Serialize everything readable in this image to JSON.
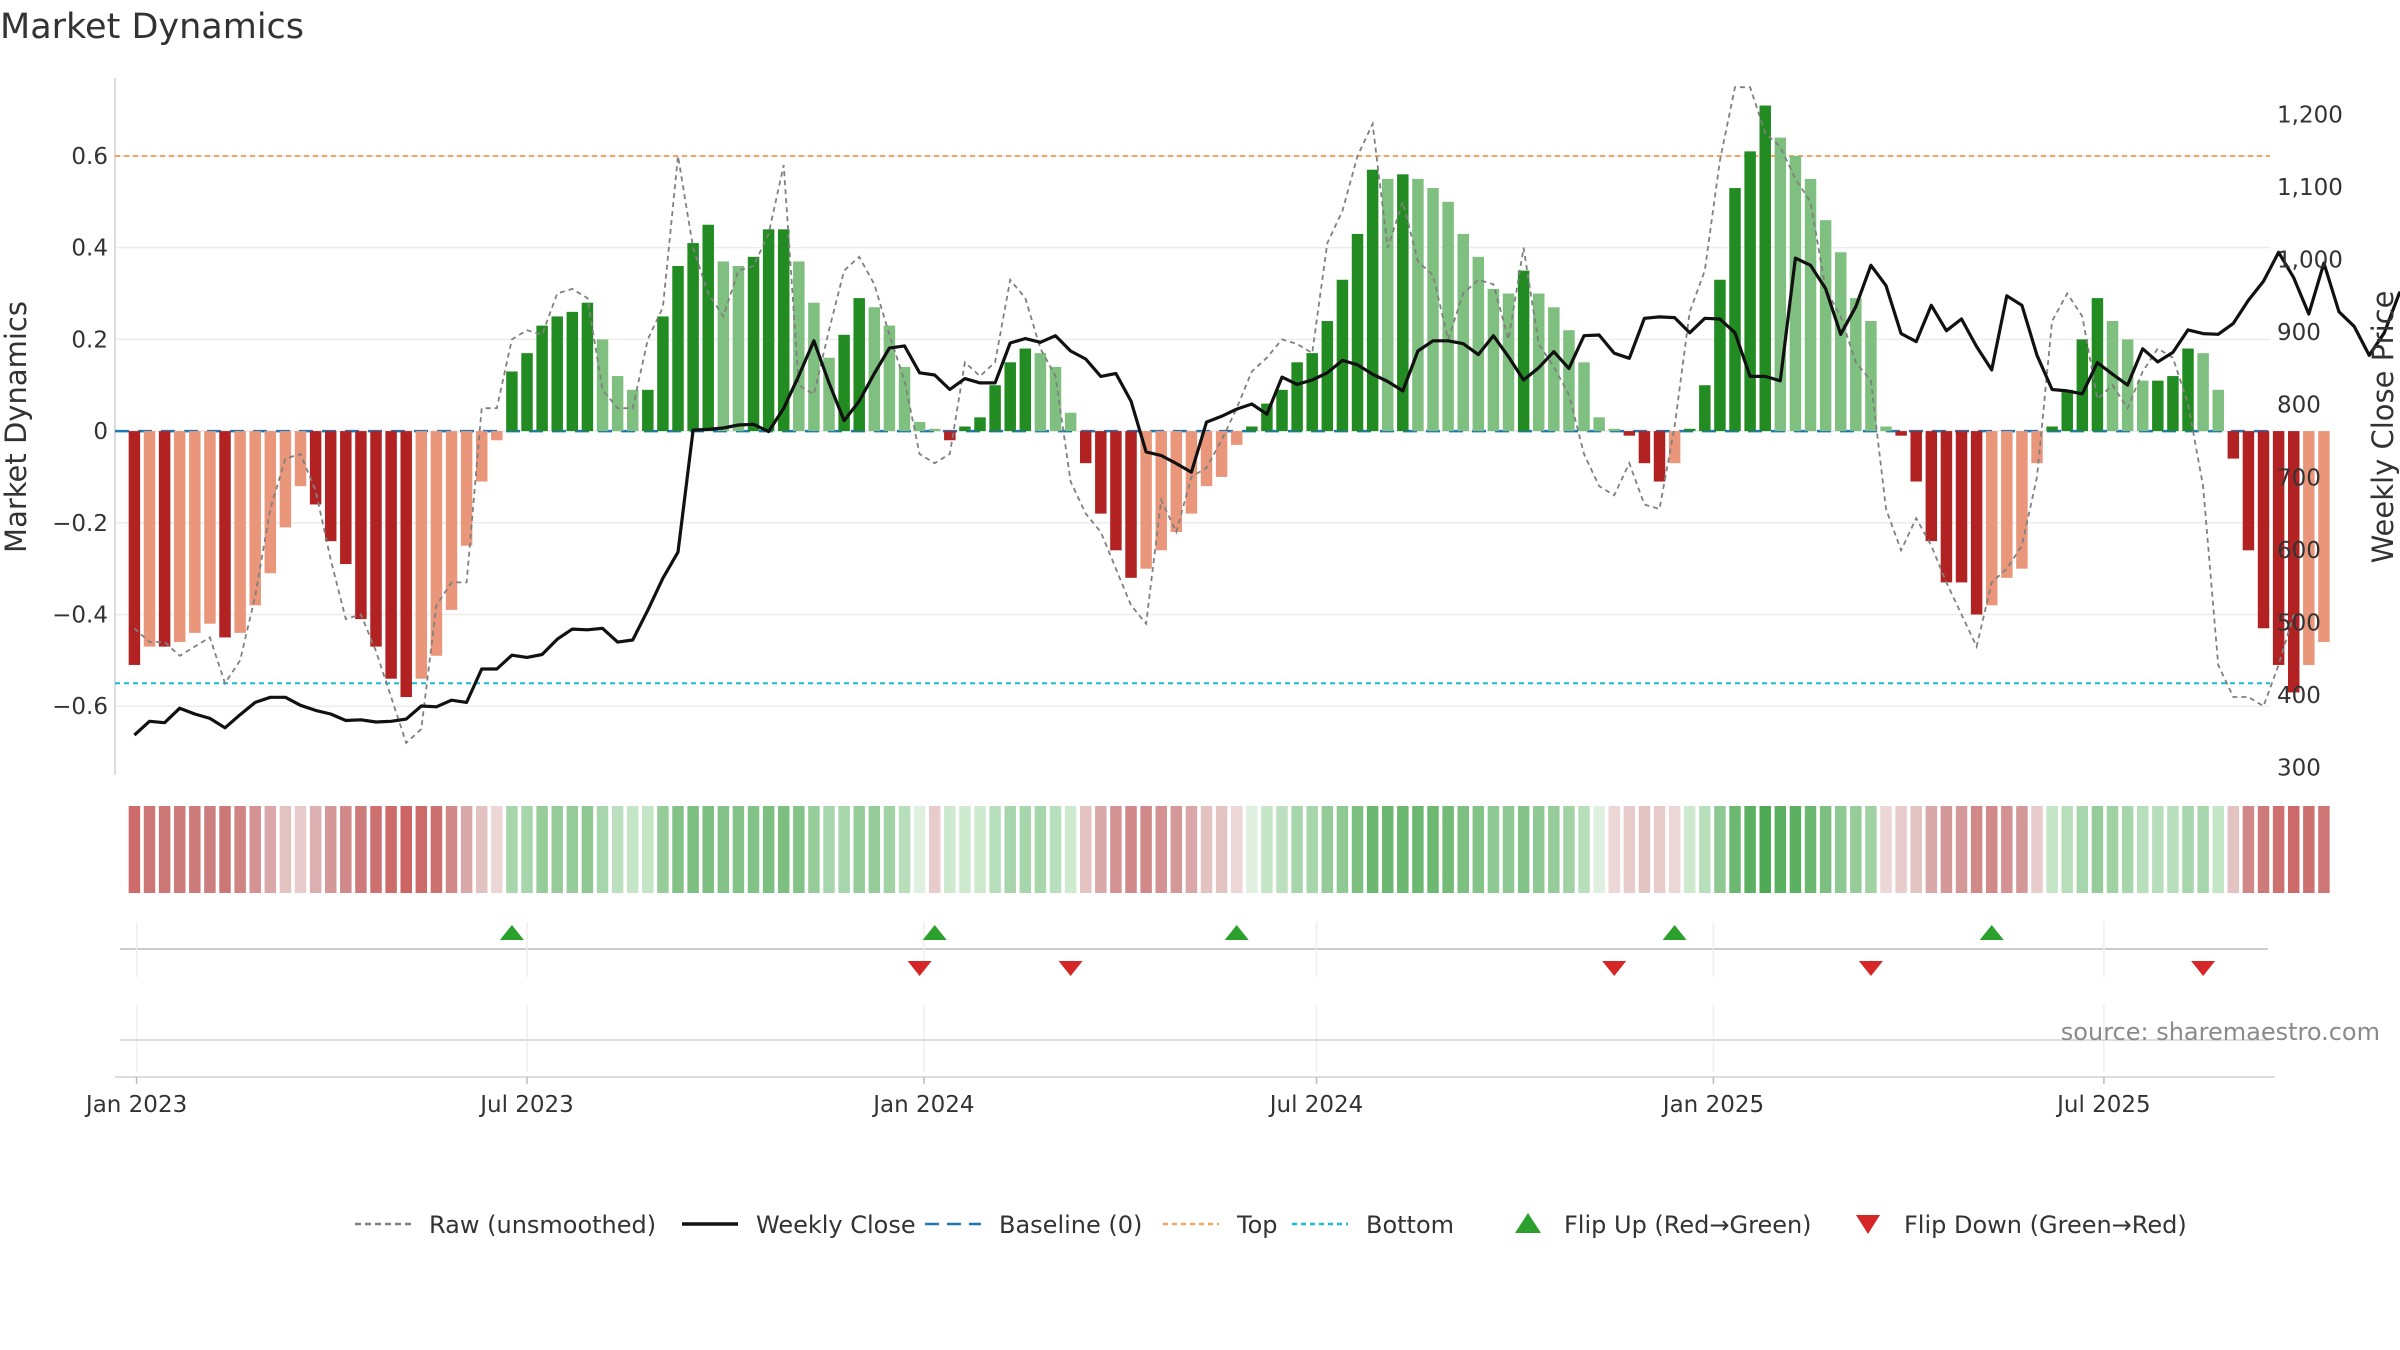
{
  "chart_data": {
    "type": "bar",
    "title": "Market Dynamics",
    "ylabel": "Market Dynamics",
    "y2label": "Weekly Close Price",
    "ylim": [
      -0.75,
      0.77
    ],
    "y2lim": [
      290,
      1250
    ],
    "xlim": [
      "2022-12-22",
      "2025-09-16"
    ],
    "x_start": "2022-12-31",
    "x_step_days": 7,
    "yticks": [
      0.6,
      0.4,
      0.2,
      0,
      -0.2,
      -0.4,
      -0.6
    ],
    "ytick_labels": [
      "0.6",
      "0.4",
      "0.2",
      "0",
      "−0.2",
      "−0.4",
      "−0.6"
    ],
    "y2ticks": [
      1200,
      1100,
      1000,
      900,
      800,
      700,
      600,
      500,
      400,
      300
    ],
    "y2tick_labels": [
      "1,200",
      "1,100",
      "1,000",
      "900",
      "800",
      "700",
      "600",
      "500",
      "400",
      "300"
    ],
    "xticks": [
      {
        "date": "2023-01-01",
        "label": "Jan 2023"
      },
      {
        "date": "2023-07-01",
        "label": "Jul 2023"
      },
      {
        "date": "2024-01-01",
        "label": "Jan 2024"
      },
      {
        "date": "2024-07-01",
        "label": "Jul 2024"
      },
      {
        "date": "2025-01-01",
        "label": "Jan 2025"
      },
      {
        "date": "2025-07-01",
        "label": "Jul 2025"
      }
    ],
    "reference_lines": {
      "baseline": 0,
      "top": 0.6,
      "bottom": -0.55
    },
    "series": [
      {
        "name": "Market Dynamics",
        "kind": "bar",
        "values": [
          -0.51,
          -0.47,
          -0.47,
          -0.46,
          -0.44,
          -0.42,
          -0.45,
          -0.44,
          -0.38,
          -0.31,
          -0.21,
          -0.12,
          -0.16,
          -0.24,
          -0.29,
          -0.41,
          -0.47,
          -0.54,
          -0.58,
          -0.54,
          -0.49,
          -0.39,
          -0.25,
          -0.11,
          -0.02,
          0.13,
          0.17,
          0.23,
          0.25,
          0.26,
          0.28,
          0.2,
          0.12,
          0.09,
          0.09,
          0.25,
          0.36,
          0.41,
          0.45,
          0.37,
          0.36,
          0.38,
          0.44,
          0.44,
          0.37,
          0.28,
          0.16,
          0.21,
          0.29,
          0.27,
          0.23,
          0.14,
          0.02,
          0.005,
          -0.02,
          0.01,
          0.03,
          0.1,
          0.15,
          0.18,
          0.17,
          0.14,
          0.04,
          -0.07,
          -0.18,
          -0.26,
          -0.32,
          -0.3,
          -0.26,
          -0.22,
          -0.18,
          -0.12,
          -0.1,
          -0.03,
          0.01,
          0.06,
          0.09,
          0.15,
          0.17,
          0.24,
          0.33,
          0.43,
          0.57,
          0.55,
          0.56,
          0.55,
          0.53,
          0.5,
          0.43,
          0.38,
          0.31,
          0.3,
          0.35,
          0.3,
          0.27,
          0.22,
          0.15,
          0.03,
          0.005,
          -0.01,
          -0.07,
          -0.11,
          -0.07,
          0.005,
          0.1,
          0.33,
          0.53,
          0.61,
          0.71,
          0.64,
          0.6,
          0.55,
          0.46,
          0.39,
          0.29,
          0.24,
          0.01,
          -0.01,
          -0.11,
          -0.24,
          -0.33,
          -0.33,
          -0.4,
          -0.38,
          -0.32,
          -0.3,
          -0.07,
          0.01,
          0.09,
          0.2,
          0.29,
          0.24,
          0.2,
          0.11,
          0.11,
          0.12,
          0.18,
          0.17,
          0.09,
          -0.06,
          -0.26,
          -0.43,
          -0.51,
          -0.57,
          -0.51,
          -0.46
        ]
      },
      {
        "name": "Weekly Close",
        "kind": "line",
        "axis": "right",
        "values": [
          345,
          364,
          362,
          382,
          374,
          368,
          355,
          373,
          390,
          397,
          397,
          386,
          379,
          374,
          365,
          366,
          363,
          364,
          367,
          385,
          384,
          393,
          390,
          436,
          436,
          455,
          452,
          456,
          477,
          491,
          490,
          492,
          473,
          476,
          517,
          561,
          597,
          765,
          766,
          768,
          772,
          773,
          763,
          795,
          840,
          888,
          830,
          778,
          805,
          843,
          878,
          881,
          844,
          841,
          821,
          836,
          830,
          830,
          885,
          891,
          886,
          895,
          874,
          863,
          839,
          843,
          805,
          735,
          730,
          719,
          707,
          776,
          784,
          794,
          801,
          787,
          838,
          828,
          834,
          844,
          861,
          855,
          842,
          832,
          819,
          874,
          888,
          888,
          884,
          869,
          895,
          866,
          834,
          851,
          873,
          850,
          895,
          896,
          871,
          864,
          919,
          921,
          920,
          899,
          919,
          918,
          899,
          839,
          839,
          833,
          1002,
          992,
          960,
          897,
          935,
          992,
          964,
          898,
          887,
          937,
          902,
          918,
          880,
          848,
          950,
          937,
          868,
          821,
          819,
          815,
          858,
          842,
          827,
          877,
          859,
          872,
          903,
          898,
          897,
          912,
          944,
          970,
          1010,
          975,
          925,
          995,
          928,
          908,
          868,
          899,
          954,
          945,
          915,
          882,
          848,
          857,
          823,
          760,
          792,
          800,
          752,
          771,
          762
        ]
      },
      {
        "name": "Raw (unsmoothed)",
        "kind": "line",
        "style": "dashed",
        "values": [
          -0.43,
          -0.46,
          -0.46,
          -0.49,
          -0.47,
          -0.45,
          -0.55,
          -0.5,
          -0.36,
          -0.17,
          -0.06,
          -0.05,
          -0.13,
          -0.28,
          -0.41,
          -0.4,
          -0.48,
          -0.58,
          -0.68,
          -0.65,
          -0.38,
          -0.33,
          -0.33,
          0.05,
          0.05,
          0.2,
          0.22,
          0.21,
          0.3,
          0.31,
          0.29,
          0.09,
          0.05,
          0.05,
          0.2,
          0.27,
          0.6,
          0.4,
          0.3,
          0.25,
          0.35,
          0.36,
          0.43,
          0.58,
          0.1,
          0.08,
          0.22,
          0.35,
          0.38,
          0.32,
          0.21,
          0.11,
          -0.05,
          -0.07,
          -0.05,
          0.15,
          0.12,
          0.15,
          0.33,
          0.29,
          0.18,
          0.12,
          -0.11,
          -0.18,
          -0.22,
          -0.3,
          -0.38,
          -0.42,
          -0.15,
          -0.22,
          -0.1,
          -0.08,
          -0.02,
          0.05,
          0.13,
          0.16,
          0.2,
          0.19,
          0.17,
          0.41,
          0.48,
          0.6,
          0.67,
          0.4,
          0.5,
          0.37,
          0.34,
          0.2,
          0.3,
          0.33,
          0.32,
          0.2,
          0.4,
          0.19,
          0.14,
          0.08,
          -0.05,
          -0.12,
          -0.14,
          -0.07,
          -0.16,
          -0.17,
          0.01,
          0.26,
          0.35,
          0.59,
          0.75,
          0.75,
          0.65,
          0.62,
          0.55,
          0.5,
          0.31,
          0.25,
          0.15,
          0.11,
          -0.17,
          -0.26,
          -0.19,
          -0.25,
          -0.33,
          -0.4,
          -0.47,
          -0.33,
          -0.3,
          -0.25,
          -0.1,
          0.24,
          0.3,
          0.25,
          0.07,
          0.1,
          0.05,
          0.13,
          0.18,
          0.16,
          0.06,
          -0.12,
          -0.51,
          -0.58,
          -0.58,
          -0.6,
          -0.51,
          -0.4
        ]
      }
    ],
    "regime_strip": {
      "label": "regime strip",
      "colors": [
        "#cd6a6a",
        "#cd7676",
        "#cd7676",
        "#cd7a7a",
        "#cd7a7a",
        "#cd7e7e",
        "#cd7676",
        "#d08484",
        "#d49292",
        "#daa8a8",
        "#e3c2c2",
        "#e8cccc",
        "#dcb0b0",
        "#d49898",
        "#d08888",
        "#cd7a7a",
        "#cd7070",
        "#cd6a6a",
        "#cd6464",
        "#cd6a6a",
        "#cd7070",
        "#d08888",
        "#daa8a8",
        "#e3c2c2",
        "#ecd6d6",
        "#a8d6ac",
        "#a8d6ac",
        "#96cc9a",
        "#96cc9a",
        "#96cc9a",
        "#8ec892",
        "#a8d6ac",
        "#bce0bf",
        "#c4e5c6",
        "#c4e5c6",
        "#96cc9a",
        "#84c388",
        "#7cbf80",
        "#7cbf80",
        "#84c388",
        "#84c388",
        "#84c388",
        "#7cbf80",
        "#7cbf80",
        "#84c388",
        "#96cc9a",
        "#a8d6ac",
        "#a8d6ac",
        "#96cc9a",
        "#96cc9a",
        "#a0d2a4",
        "#b8dfbb",
        "#dff0e0",
        "#e8cccc",
        "#cdeacf",
        "#cdeacf",
        "#cdeacf",
        "#b8dfbb",
        "#a8d6ac",
        "#a8d6ac",
        "#a8d6ac",
        "#b8dfbb",
        "#cdeacf",
        "#e3c2c2",
        "#daa8a8",
        "#d49292",
        "#d08888",
        "#d08888",
        "#d49292",
        "#d49898",
        "#daa8a8",
        "#e3c2c2",
        "#e3c2c2",
        "#ecd6d6",
        "#dff0e0",
        "#c4e5c6",
        "#bce0bf",
        "#a8d6ac",
        "#a8d6ac",
        "#96cc9a",
        "#8ec892",
        "#7cbf80",
        "#6cb871",
        "#6cb871",
        "#6cb871",
        "#6cb871",
        "#6cb871",
        "#74bb78",
        "#7cbf80",
        "#84c388",
        "#8ec892",
        "#8ec892",
        "#84c388",
        "#8ec892",
        "#96cc9a",
        "#a0d2a4",
        "#b8dfbb",
        "#dff0e0",
        "#ecd6d6",
        "#e8cccc",
        "#e3c2c2",
        "#e8cccc",
        "#ecd6d6",
        "#cdeacf",
        "#b8dfbb",
        "#8ec892",
        "#6cb871",
        "#5cb062",
        "#4ea955",
        "#5cb062",
        "#5cb062",
        "#6cb871",
        "#7cbf80",
        "#8ec892",
        "#96cc9a",
        "#a0d2a4",
        "#ecd6d6",
        "#e8cccc",
        "#e3c2c2",
        "#daa8a8",
        "#d49898",
        "#d49898",
        "#d08888",
        "#d08888",
        "#d49292",
        "#d49898",
        "#e8cccc",
        "#c4e5c6",
        "#b8dfbb",
        "#a8d6ac",
        "#96cc9a",
        "#a0d2a4",
        "#a8d6ac",
        "#b8dfbb",
        "#b8dfbb",
        "#b8dfbb",
        "#a8d6ac",
        "#a8d6ac",
        "#c4e5c6",
        "#e3c2c2",
        "#d08888",
        "#cd7a7a",
        "#cd7070",
        "#cd6a6a",
        "#cd7070",
        "#cd7676"
      ]
    },
    "flips": {
      "up": [
        "2023-06-24",
        "2024-01-06",
        "2024-05-25",
        "2024-12-14",
        "2025-05-10"
      ],
      "down": [
        "2023-12-30",
        "2024-03-09",
        "2024-11-16",
        "2025-03-15",
        "2025-08-16"
      ]
    },
    "colors": {
      "bar_strong_up": "#228b22",
      "bar_weak_up": "#7fbf7f",
      "bar_strong_down": "#b22222",
      "bar_weak_down": "#e9967a",
      "close_line": "#111111",
      "raw_line": "#808080",
      "baseline": "#1f77b4",
      "top": "#f4a460",
      "bottom": "#17becf",
      "flip_up": "#2ca02c",
      "flip_down": "#d62728"
    },
    "legend": {
      "position": "bottom-center",
      "items": [
        {
          "label": "Raw (unsmoothed)",
          "kind": "dashed",
          "color": "#808080"
        },
        {
          "label": "Weekly Close",
          "kind": "solid",
          "color": "#111111"
        },
        {
          "label": "Baseline (0)",
          "kind": "longdash",
          "color": "#1f77b4"
        },
        {
          "label": "Top",
          "kind": "dotted",
          "color": "#f4a460"
        },
        {
          "label": "Bottom",
          "kind": "dotted",
          "color": "#17becf"
        },
        {
          "label": "Flip Up (Red→Green)",
          "kind": "tri-up",
          "color": "#2ca02c"
        },
        {
          "label": "Flip Down (Green→Red)",
          "kind": "tri-down",
          "color": "#d62728"
        }
      ]
    },
    "source": "source: sharemaestro.com",
    "grid": true
  }
}
